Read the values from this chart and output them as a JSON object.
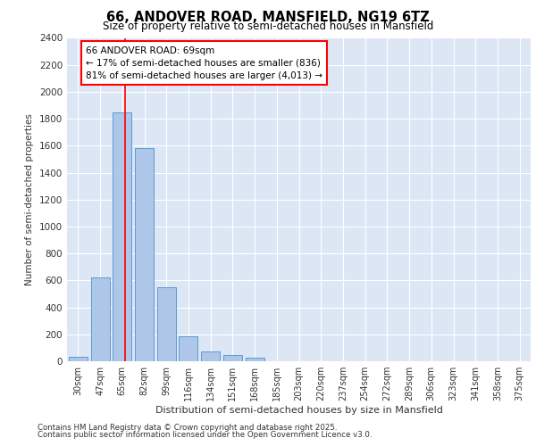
{
  "title1": "66, ANDOVER ROAD, MANSFIELD, NG19 6TZ",
  "title2": "Size of property relative to semi-detached houses in Mansfield",
  "xlabel": "Distribution of semi-detached houses by size in Mansfield",
  "ylabel": "Number of semi-detached properties",
  "categories": [
    "30sqm",
    "47sqm",
    "65sqm",
    "82sqm",
    "99sqm",
    "116sqm",
    "134sqm",
    "151sqm",
    "168sqm",
    "185sqm",
    "203sqm",
    "220sqm",
    "237sqm",
    "254sqm",
    "272sqm",
    "289sqm",
    "306sqm",
    "323sqm",
    "341sqm",
    "358sqm",
    "375sqm"
  ],
  "values": [
    35,
    620,
    1850,
    1580,
    550,
    185,
    70,
    45,
    25,
    0,
    0,
    0,
    0,
    0,
    0,
    0,
    0,
    0,
    0,
    0,
    0
  ],
  "bar_color": "#aec6e8",
  "bar_edge_color": "#5b9bd5",
  "red_line_x": 2.15,
  "annotation_title": "66 ANDOVER ROAD: 69sqm",
  "annotation_line1": "← 17% of semi-detached houses are smaller (836)",
  "annotation_line2": "81% of semi-detached houses are larger (4,013) →",
  "ylim": [
    0,
    2400
  ],
  "yticks": [
    0,
    200,
    400,
    600,
    800,
    1000,
    1200,
    1400,
    1600,
    1800,
    2000,
    2200,
    2400
  ],
  "fig_background": "#ffffff",
  "plot_background": "#dce6f5",
  "grid_color": "#ffffff",
  "footer1": "Contains HM Land Registry data © Crown copyright and database right 2025.",
  "footer2": "Contains public sector information licensed under the Open Government Licence v3.0."
}
